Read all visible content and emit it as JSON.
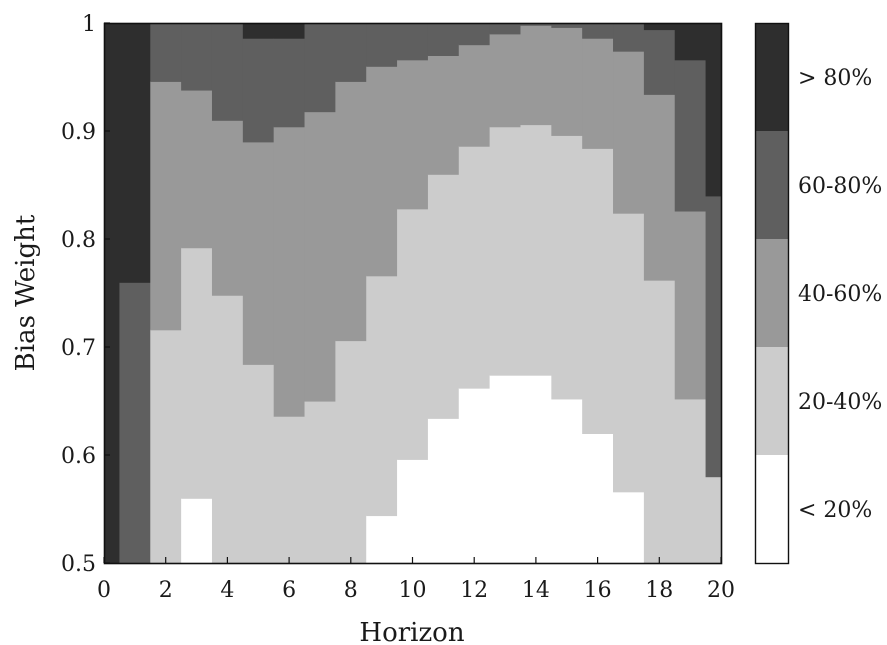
{
  "chart_data": {
    "type": "heatmap",
    "title": "",
    "xlabel": "Horizon",
    "ylabel": "Bias Weight",
    "xlim": [
      0,
      20
    ],
    "ylim": [
      0.5,
      1
    ],
    "x_ticks": [
      "0",
      "2",
      "4",
      "6",
      "8",
      "10",
      "12",
      "14",
      "16",
      "18",
      "20"
    ],
    "y_ticks": [
      "0.5",
      "0.6",
      "0.7",
      "0.8",
      "0.9",
      "1"
    ],
    "grid": false,
    "legend": "right",
    "bins": [
      {
        "label": "< 20%",
        "color": "#ffffff"
      },
      {
        "label": "20-40%",
        "color": "#cccccc"
      },
      {
        "label": "40-60%",
        "color": "#999999"
      },
      {
        "label": "60-80%",
        "color": "#5f5f5f"
      },
      {
        "label": "> 80%",
        "color": "#2e2e2e"
      }
    ],
    "columns": [
      {
        "horizon": 0,
        "t1": 0.5,
        "t2": 0.5,
        "t3": 0.5,
        "t4": 0.5
      },
      {
        "horizon": 1,
        "t1": 0.5,
        "t2": 0.5,
        "t3": 0.5,
        "t4": 0.76
      },
      {
        "horizon": 2,
        "t1": 0.5,
        "t2": 0.716,
        "t3": 0.946,
        "t4": 1.0
      },
      {
        "horizon": 3,
        "t1": 0.56,
        "t2": 0.792,
        "t3": 0.938,
        "t4": 1.0
      },
      {
        "horizon": 4,
        "t1": 0.5,
        "t2": 0.748,
        "t3": 0.91,
        "t4": 1.0
      },
      {
        "horizon": 5,
        "t1": 0.5,
        "t2": 0.684,
        "t3": 0.89,
        "t4": 0.986
      },
      {
        "horizon": 6,
        "t1": 0.5,
        "t2": 0.636,
        "t3": 0.904,
        "t4": 0.986
      },
      {
        "horizon": 7,
        "t1": 0.5,
        "t2": 0.65,
        "t3": 0.918,
        "t4": 1.0
      },
      {
        "horizon": 8,
        "t1": 0.5,
        "t2": 0.706,
        "t3": 0.946,
        "t4": 1.0
      },
      {
        "horizon": 9,
        "t1": 0.544,
        "t2": 0.766,
        "t3": 0.96,
        "t4": 1.0
      },
      {
        "horizon": 10,
        "t1": 0.596,
        "t2": 0.828,
        "t3": 0.966,
        "t4": 1.0
      },
      {
        "horizon": 11,
        "t1": 0.634,
        "t2": 0.86,
        "t3": 0.97,
        "t4": 1.0
      },
      {
        "horizon": 12,
        "t1": 0.662,
        "t2": 0.886,
        "t3": 0.98,
        "t4": 1.0
      },
      {
        "horizon": 13,
        "t1": 0.674,
        "t2": 0.904,
        "t3": 0.99,
        "t4": 1.0
      },
      {
        "horizon": 14,
        "t1": 0.674,
        "t2": 0.906,
        "t3": 0.998,
        "t4": 1.0
      },
      {
        "horizon": 15,
        "t1": 0.652,
        "t2": 0.896,
        "t3": 0.996,
        "t4": 1.0
      },
      {
        "horizon": 16,
        "t1": 0.62,
        "t2": 0.884,
        "t3": 0.986,
        "t4": 1.0
      },
      {
        "horizon": 17,
        "t1": 0.566,
        "t2": 0.824,
        "t3": 0.974,
        "t4": 1.0
      },
      {
        "horizon": 18,
        "t1": 0.5,
        "t2": 0.762,
        "t3": 0.934,
        "t4": 0.994
      },
      {
        "horizon": 19,
        "t1": 0.5,
        "t2": 0.652,
        "t3": 0.826,
        "t4": 0.966
      },
      {
        "horizon": 20,
        "t1": 0.5,
        "t2": 0.58,
        "t3": 0.58,
        "t4": 0.84
      }
    ]
  }
}
